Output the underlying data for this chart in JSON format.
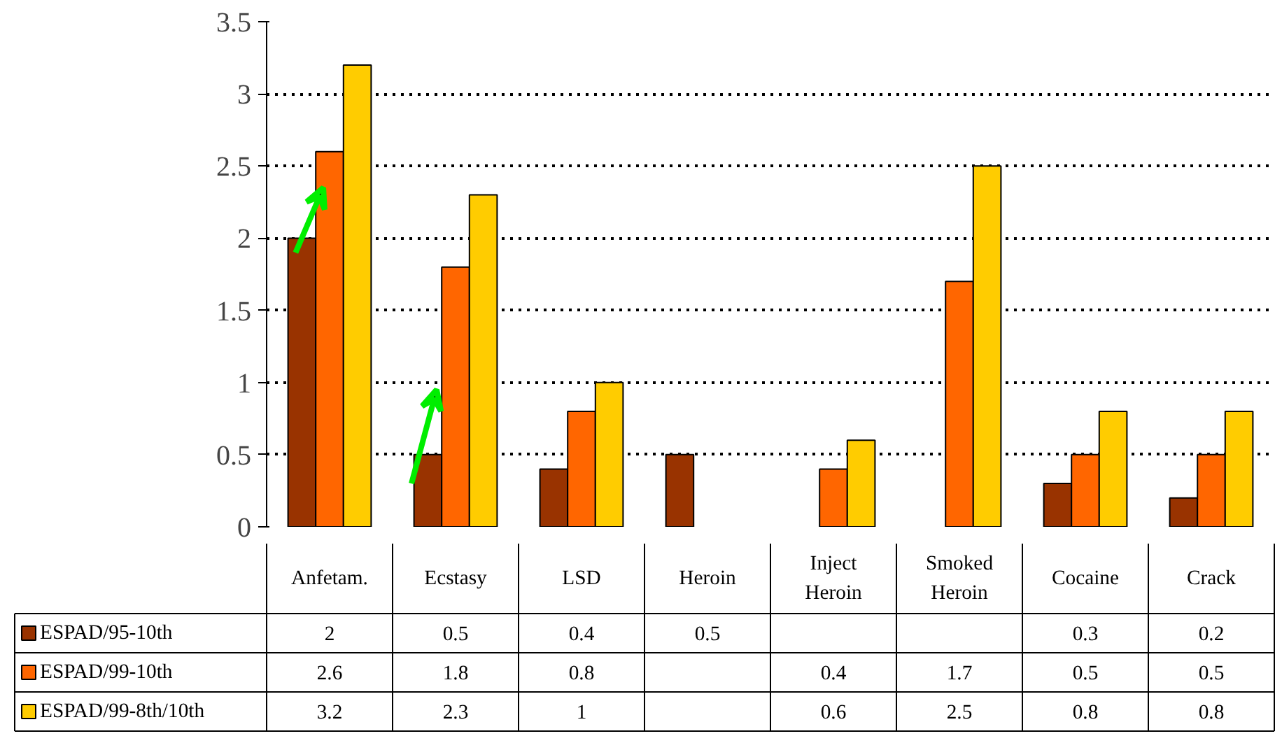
{
  "chart_data": {
    "type": "bar",
    "categories": [
      "Anfetam.",
      "Ecstasy",
      "LSD",
      "Heroin",
      "Inject Heroin",
      "Smoked Heroin",
      "Cocaine",
      "Crack"
    ],
    "series": [
      {
        "name": "ESPAD/95-10th",
        "color": "#993300",
        "values": [
          2,
          0.5,
          0.4,
          0.5,
          null,
          null,
          0.3,
          0.2
        ]
      },
      {
        "name": "ESPAD/99-10th",
        "color": "#ff6600",
        "values": [
          2.6,
          1.8,
          0.8,
          null,
          0.4,
          1.7,
          0.5,
          0.5
        ]
      },
      {
        "name": "ESPAD/99-8th/10th",
        "color": "#ffcc00",
        "values": [
          3.2,
          2.3,
          1,
          null,
          0.6,
          2.5,
          0.8,
          0.8
        ]
      }
    ],
    "ylim": [
      0,
      3.5
    ],
    "yticks": [
      0,
      0.5,
      1,
      1.5,
      2,
      2.5,
      3,
      3.5
    ],
    "grid": "y",
    "data_labels": true,
    "legend": "bottom"
  }
}
